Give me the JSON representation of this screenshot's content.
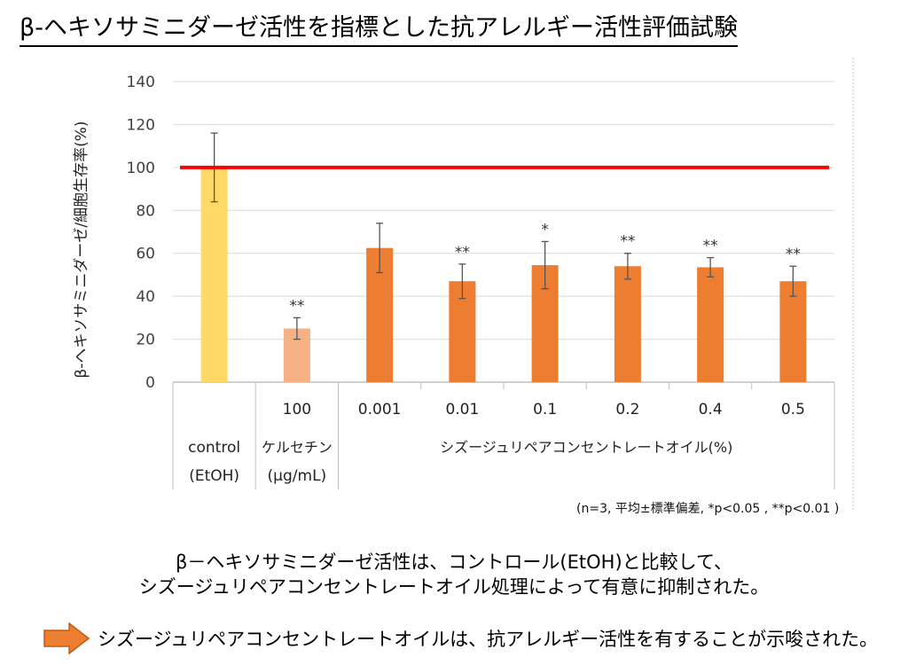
{
  "page_title": "β-ヘキソサミニダーゼ活性を指標とした抗アレルギー活性評価試験",
  "chart_data": {
    "type": "bar",
    "title": "",
    "ylabel": "β-ヘキソサミニダーゼ/細胞生存率(%)",
    "ylim": [
      0,
      140
    ],
    "yticks": [
      0,
      20,
      40,
      60,
      80,
      100,
      120,
      140
    ],
    "grid": true,
    "reference_line": {
      "value": 100,
      "color": "#ff0000"
    },
    "categories": [
      "control (EtOH)",
      "100",
      "0.001",
      "0.01",
      "0.1",
      "0.2",
      "0.4",
      "0.5"
    ],
    "category_labels": [
      "",
      "100",
      "0.001",
      "0.01",
      "0.1",
      "0.2",
      "0.4",
      "0.5"
    ],
    "values": [
      100,
      25,
      62.5,
      47,
      54.5,
      54,
      53.5,
      47
    ],
    "errors": [
      16,
      5,
      11.5,
      8,
      11,
      6,
      4.5,
      7
    ],
    "significance": [
      "",
      "**",
      "",
      "**",
      "*",
      "**",
      "**",
      "**"
    ],
    "bar_colors": [
      "#ffd966",
      "#f4b183",
      "#ed7d31",
      "#ed7d31",
      "#ed7d31",
      "#ed7d31",
      "#ed7d31",
      "#ed7d31"
    ],
    "group_labels": {
      "control_line1": "control",
      "control_line2": "(EtOH)",
      "quercetin_line1": "ケルセチン",
      "quercetin_line2": "(μg/mL)",
      "oil": "シズージュリペアコンセントレートオイル(%)"
    }
  },
  "note": "(n=3, 平均±標準偏差, *p<0.05 , **p<0.01 )",
  "conclusion": {
    "line1": "β－ヘキソサミニダーゼ活性は、コントロール(EtOH)と比較して、",
    "line2": "シズージュリペアコンセントレートオイル処理によって有意に抑制された。",
    "arrow_text": "シズージュリペアコンセントレートオイルは、抗アレルギー活性を有することが示唆された。"
  },
  "colors": {
    "arrow": "#ed7d31",
    "reference_line": "#ff0000",
    "grid": "#d9d9d9"
  }
}
